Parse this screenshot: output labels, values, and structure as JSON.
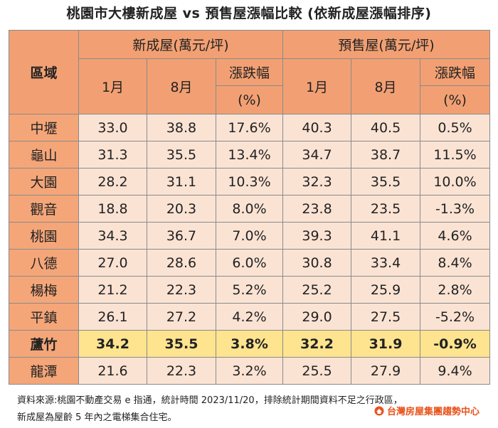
{
  "title": "桃園市大樓新成屋 vs 預售屋漲幅比較 (依新成屋漲幅排序)",
  "headers": {
    "region": "區域",
    "new_group": "新成屋(萬元/坪)",
    "presale_group": "預售屋(萬元/坪)",
    "jan": "1月",
    "aug": "8月",
    "change_line1": "漲跌幅",
    "change_line2": "(%)"
  },
  "rows": [
    {
      "region": "中壢",
      "new_jan": "33.0",
      "new_aug": "38.8",
      "new_chg": "17.6%",
      "pre_jan": "40.3",
      "pre_aug": "40.5",
      "pre_chg": "0.5%"
    },
    {
      "region": "龜山",
      "new_jan": "31.3",
      "new_aug": "35.5",
      "new_chg": "13.4%",
      "pre_jan": "34.7",
      "pre_aug": "38.7",
      "pre_chg": "11.5%"
    },
    {
      "region": "大園",
      "new_jan": "28.2",
      "new_aug": "31.1",
      "new_chg": "10.3%",
      "pre_jan": "32.3",
      "pre_aug": "35.5",
      "pre_chg": "10.0%"
    },
    {
      "region": "觀音",
      "new_jan": "18.8",
      "new_aug": "20.3",
      "new_chg": "8.0%",
      "pre_jan": "23.8",
      "pre_aug": "23.5",
      "pre_chg": "-1.3%"
    },
    {
      "region": "桃園",
      "new_jan": "34.3",
      "new_aug": "36.7",
      "new_chg": "7.0%",
      "pre_jan": "39.3",
      "pre_aug": "41.1",
      "pre_chg": "4.6%"
    },
    {
      "region": "八德",
      "new_jan": "27.0",
      "new_aug": "28.6",
      "new_chg": "6.0%",
      "pre_jan": "30.8",
      "pre_aug": "33.4",
      "pre_chg": "8.4%"
    },
    {
      "region": "楊梅",
      "new_jan": "21.2",
      "new_aug": "22.3",
      "new_chg": "5.2%",
      "pre_jan": "25.2",
      "pre_aug": "25.9",
      "pre_chg": "2.8%"
    },
    {
      "region": "平鎮",
      "new_jan": "26.1",
      "new_aug": "27.2",
      "new_chg": "4.2%",
      "pre_jan": "29.0",
      "pre_aug": "27.5",
      "pre_chg": "-5.2%"
    },
    {
      "region": "蘆竹",
      "new_jan": "34.2",
      "new_aug": "35.5",
      "new_chg": "3.8%",
      "pre_jan": "32.2",
      "pre_aug": "31.9",
      "pre_chg": "-0.9%"
    },
    {
      "region": "龍潭",
      "new_jan": "21.6",
      "new_aug": "22.3",
      "new_chg": "3.2%",
      "pre_jan": "25.5",
      "pre_aug": "27.9",
      "pre_chg": "9.4%"
    }
  ],
  "colors": {
    "header_bg": "#f2a073",
    "cell_bg": "#fbe3d4",
    "highlight_bg": "#ffe48f",
    "accent_red": "#e8262b",
    "logo_orange": "#e8541d"
  },
  "footer": {
    "line1": "資料來源:桃園不動產交易 e 指通，統計時間 2023/11/20，排除統計期間資料不足之行政區，",
    "line2": "新成屋為屋齡 5 年內之電梯集合住宅。",
    "logo_text": "台灣房屋集團趨勢中心",
    "logo_icon": "taiwan-realty-logo-icon"
  }
}
